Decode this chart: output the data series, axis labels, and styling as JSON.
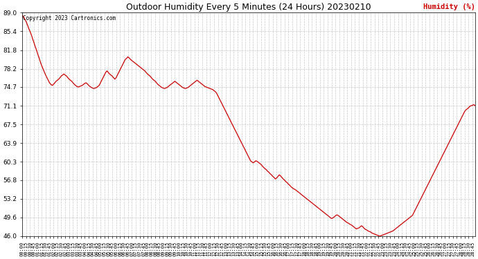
{
  "title": "Outdoor Humidity Every 5 Minutes (24 Hours) 20230210",
  "ylabel": "Humidity (%)",
  "ylabel_color": "#cc0000",
  "copyright_text": "Copyright 2023 Cartronics.com",
  "line_color": "#cc0000",
  "background_color": "#ffffff",
  "grid_color": "#c8c8c8",
  "ylim": [
    46.0,
    89.0
  ],
  "yticks": [
    46.0,
    49.6,
    53.2,
    56.8,
    60.3,
    63.9,
    67.5,
    71.1,
    74.7,
    78.2,
    81.8,
    85.4,
    89.0
  ],
  "humidity_values": [
    88.5,
    88.2,
    87.8,
    87.3,
    86.7,
    86.0,
    85.4,
    84.8,
    84.0,
    83.3,
    82.5,
    81.8,
    81.0,
    80.3,
    79.5,
    78.8,
    78.2,
    77.6,
    77.0,
    76.5,
    76.0,
    75.5,
    75.2,
    75.0,
    75.2,
    75.5,
    75.8,
    76.0,
    76.2,
    76.5,
    76.8,
    77.0,
    77.2,
    77.0,
    76.8,
    76.5,
    76.2,
    76.0,
    75.8,
    75.5,
    75.2,
    75.0,
    74.8,
    74.7,
    74.8,
    74.9,
    75.0,
    75.2,
    75.4,
    75.5,
    75.3,
    75.0,
    74.8,
    74.6,
    74.5,
    74.4,
    74.5,
    74.6,
    74.8,
    75.0,
    75.5,
    76.0,
    76.5,
    77.0,
    77.5,
    77.8,
    77.5,
    77.2,
    77.0,
    76.8,
    76.5,
    76.2,
    76.5,
    77.0,
    77.5,
    78.0,
    78.5,
    79.0,
    79.5,
    80.0,
    80.2,
    80.5,
    80.3,
    80.0,
    79.8,
    79.6,
    79.4,
    79.2,
    79.0,
    78.8,
    78.6,
    78.4,
    78.2,
    78.0,
    77.8,
    77.5,
    77.2,
    77.0,
    76.8,
    76.5,
    76.2,
    76.0,
    75.8,
    75.5,
    75.2,
    75.0,
    74.8,
    74.6,
    74.5,
    74.4,
    74.5,
    74.6,
    74.8,
    75.0,
    75.2,
    75.4,
    75.6,
    75.8,
    75.6,
    75.4,
    75.2,
    75.0,
    74.8,
    74.6,
    74.5,
    74.4,
    74.5,
    74.6,
    74.8,
    75.0,
    75.2,
    75.4,
    75.6,
    75.8,
    76.0,
    75.8,
    75.6,
    75.4,
    75.2,
    75.0,
    74.8,
    74.7,
    74.6,
    74.5,
    74.4,
    74.3,
    74.2,
    74.0,
    73.8,
    73.5,
    73.0,
    72.5,
    72.0,
    71.5,
    71.0,
    70.5,
    70.0,
    69.5,
    69.0,
    68.5,
    68.0,
    67.5,
    67.0,
    66.5,
    66.0,
    65.5,
    65.0,
    64.5,
    64.0,
    63.5,
    63.0,
    62.5,
    62.0,
    61.5,
    61.0,
    60.5,
    60.3,
    60.1,
    60.3,
    60.5,
    60.4,
    60.2,
    60.0,
    59.8,
    59.5,
    59.2,
    59.0,
    58.8,
    58.5,
    58.3,
    58.0,
    57.8,
    57.5,
    57.3,
    57.0,
    57.2,
    57.5,
    57.8,
    57.6,
    57.3,
    57.0,
    56.8,
    56.5,
    56.3,
    56.0,
    55.8,
    55.5,
    55.3,
    55.1,
    55.0,
    54.8,
    54.6,
    54.4,
    54.2,
    54.0,
    53.8,
    53.6,
    53.4,
    53.2,
    53.0,
    52.8,
    52.6,
    52.4,
    52.2,
    52.0,
    51.8,
    51.6,
    51.4,
    51.2,
    51.0,
    50.8,
    50.6,
    50.4,
    50.2,
    50.0,
    49.8,
    49.6,
    49.4,
    49.5,
    49.7,
    49.9,
    50.1,
    50.0,
    49.8,
    49.6,
    49.4,
    49.2,
    49.0,
    48.8,
    48.6,
    48.5,
    48.3,
    48.2,
    48.0,
    47.8,
    47.6,
    47.4,
    47.5,
    47.6,
    47.8,
    48.0,
    47.8,
    47.5,
    47.3,
    47.2,
    47.0,
    46.9,
    46.8,
    46.6,
    46.5,
    46.4,
    46.3,
    46.2,
    46.1,
    46.0,
    46.1,
    46.2,
    46.3,
    46.4,
    46.5,
    46.6,
    46.7,
    46.8,
    46.9,
    47.0,
    47.2,
    47.4,
    47.6,
    47.8,
    48.0,
    48.2,
    48.4,
    48.6,
    48.8,
    49.0,
    49.2,
    49.4,
    49.6,
    49.8,
    50.0,
    50.5,
    51.0,
    51.5,
    52.0,
    52.5,
    53.0,
    53.5,
    54.0,
    54.5,
    55.0,
    55.5,
    56.0,
    56.5,
    57.0,
    57.5,
    58.0,
    58.5,
    59.0,
    59.5,
    60.0,
    60.5,
    61.0,
    61.5,
    62.0,
    62.5,
    63.0,
    63.5,
    64.0,
    64.5,
    65.0,
    65.5,
    66.0,
    66.5,
    67.0,
    67.5,
    68.0,
    68.5,
    69.0,
    69.5,
    70.0,
    70.3,
    70.5,
    70.7,
    71.0,
    71.1,
    71.2,
    71.3,
    71.1
  ]
}
